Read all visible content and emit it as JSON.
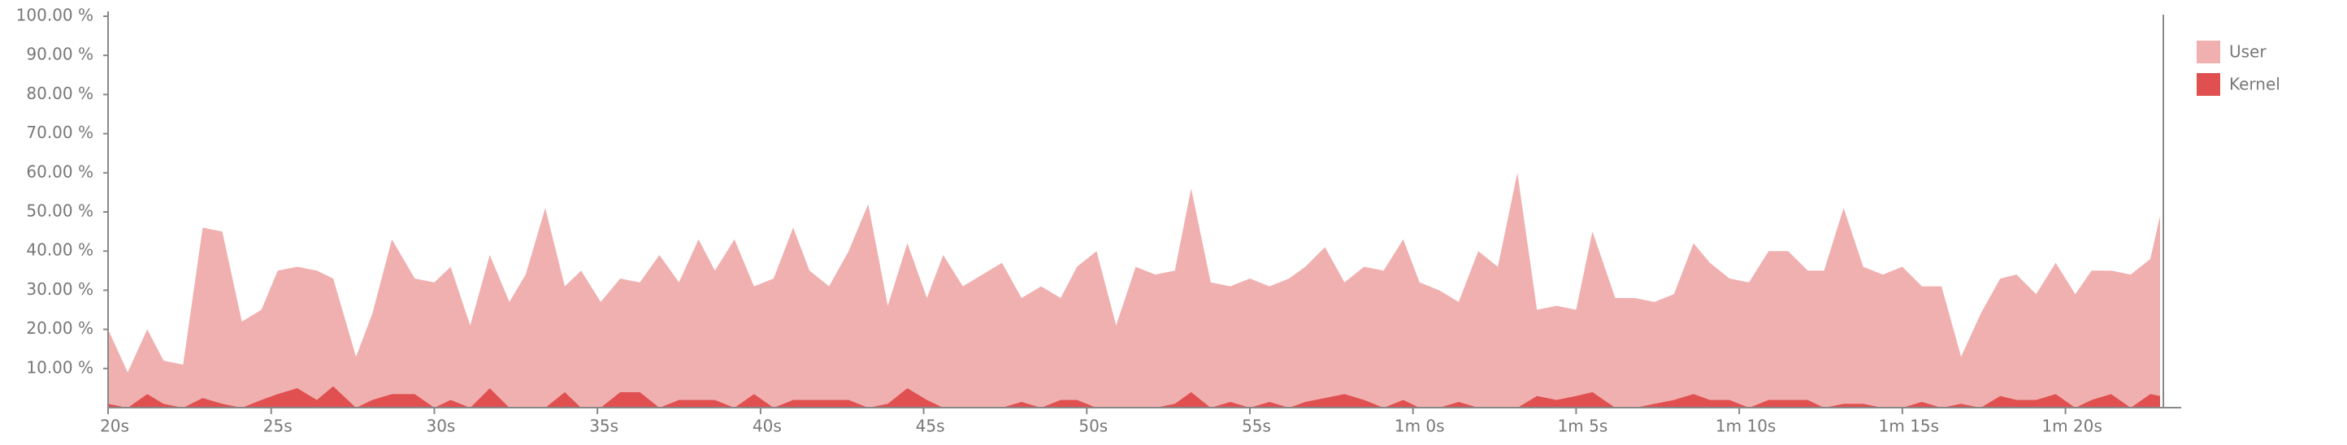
{
  "chart_data": {
    "type": "stacked-area",
    "x": [
      20.0,
      20.6,
      21.2,
      21.7,
      22.3,
      22.9,
      23.5,
      24.1,
      24.7,
      25.2,
      25.8,
      26.4,
      26.9,
      27.6,
      28.1,
      28.7,
      29.4,
      30.0,
      30.5,
      31.1,
      31.7,
      32.3,
      32.8,
      33.4,
      34.0,
      34.5,
      35.1,
      35.7,
      36.3,
      36.9,
      37.5,
      38.1,
      38.6,
      39.2,
      39.8,
      40.4,
      41.0,
      41.5,
      42.1,
      42.7,
      43.3,
      43.9,
      44.5,
      45.1,
      45.6,
      46.2,
      46.8,
      47.4,
      48.0,
      48.6,
      49.2,
      49.7,
      50.3,
      50.9,
      51.5,
      52.1,
      52.7,
      53.2,
      53.8,
      54.4,
      55.0,
      55.6,
      56.2,
      56.7,
      57.3,
      57.9,
      58.5,
      59.1,
      59.7,
      60.2,
      60.8,
      61.4,
      62.0,
      62.6,
      63.2,
      63.8,
      64.4,
      65.0,
      65.5,
      66.2,
      66.8,
      67.4,
      68.0,
      68.6,
      69.1,
      69.7,
      70.3,
      70.9,
      71.5,
      72.1,
      72.6,
      73.2,
      73.8,
      74.4,
      75.0,
      75.6,
      76.2,
      76.8,
      77.4,
      78.0,
      78.5,
      79.1,
      79.7,
      80.3,
      80.8,
      81.4,
      82.0,
      82.6,
      82.9
    ],
    "series": [
      {
        "name": "User",
        "color": "#f0b0b0",
        "values": [
          19,
          9,
          16.5,
          11,
          11,
          43.5,
          44,
          22,
          23,
          31.5,
          31,
          33,
          27.5,
          13,
          22,
          39.5,
          29.5,
          32,
          34,
          21,
          34,
          27,
          34,
          51,
          27,
          35,
          27,
          29,
          28,
          39,
          30,
          41,
          33,
          43,
          27.5,
          33,
          44,
          33,
          29,
          38,
          52,
          25,
          37,
          26,
          39,
          31,
          34,
          37,
          26.5,
          31,
          26,
          34,
          40,
          21,
          36,
          34,
          34,
          52,
          32,
          29.5,
          33,
          29.5,
          33,
          34.5,
          38.5,
          28.5,
          34,
          35,
          41,
          32,
          30,
          25.5,
          40,
          36,
          60,
          22,
          24,
          22,
          41,
          28,
          28,
          26,
          27,
          38.5,
          35,
          31,
          32,
          38,
          38,
          33,
          35,
          50,
          35,
          34,
          36,
          29.5,
          31,
          12,
          24,
          30,
          32,
          27,
          33.5,
          29,
          33,
          31.5,
          34,
          34.5,
          46
        ]
      },
      {
        "name": "Kernel",
        "color": "#e05050",
        "values": [
          1,
          0,
          3.5,
          1,
          0,
          2.5,
          1,
          0,
          2,
          3.5,
          5,
          2,
          5.5,
          0,
          2,
          3.5,
          3.5,
          0,
          2,
          0,
          5,
          0,
          0,
          0,
          4,
          0,
          0,
          4,
          4,
          0,
          2,
          2,
          2,
          0,
          3.5,
          0,
          2,
          2,
          2,
          2,
          0,
          1,
          5,
          2,
          0,
          0,
          0,
          0,
          1.5,
          0,
          2,
          2,
          0,
          0,
          0,
          0,
          1,
          4,
          0,
          1.5,
          0,
          1.5,
          0,
          1.5,
          2.5,
          3.5,
          2,
          0,
          2,
          0,
          0,
          1.5,
          0,
          0,
          0,
          3,
          2,
          3,
          4,
          0,
          0,
          1,
          2,
          3.5,
          2,
          2,
          0,
          2,
          2,
          2,
          0,
          1,
          1,
          0,
          0,
          1.5,
          0,
          1,
          0,
          3,
          2,
          2,
          3.5,
          0,
          2,
          3.5,
          0,
          3.5,
          3
        ]
      }
    ],
    "xlim": [
      20,
      83
    ],
    "xticks": [
      {
        "value": 20,
        "label": "20s"
      },
      {
        "value": 25,
        "label": "25s"
      },
      {
        "value": 30,
        "label": "30s"
      },
      {
        "value": 35,
        "label": "35s"
      },
      {
        "value": 40,
        "label": "40s"
      },
      {
        "value": 45,
        "label": "45s"
      },
      {
        "value": 50,
        "label": "50s"
      },
      {
        "value": 55,
        "label": "55s"
      },
      {
        "value": 60,
        "label": "1m 0s"
      },
      {
        "value": 65,
        "label": "1m 5s"
      },
      {
        "value": 70,
        "label": "1m 10s"
      },
      {
        "value": 75,
        "label": "1m 15s"
      },
      {
        "value": 80,
        "label": "1m 20s"
      }
    ],
    "ylim": [
      0,
      100
    ],
    "yticks": [
      {
        "value": 10,
        "label": "10.00 %"
      },
      {
        "value": 20,
        "label": "20.00 %"
      },
      {
        "value": 30,
        "label": "30.00 %"
      },
      {
        "value": 40,
        "label": "40.00 %"
      },
      {
        "value": 50,
        "label": "50.00 %"
      },
      {
        "value": 60,
        "label": "60.00 %"
      },
      {
        "value": 70,
        "label": "70.00 %"
      },
      {
        "value": 80,
        "label": "80.00 %"
      },
      {
        "value": 90,
        "label": "90.00 %"
      },
      {
        "value": 100,
        "label": "100.00 %"
      }
    ],
    "grid": false,
    "legend": "top-right"
  }
}
